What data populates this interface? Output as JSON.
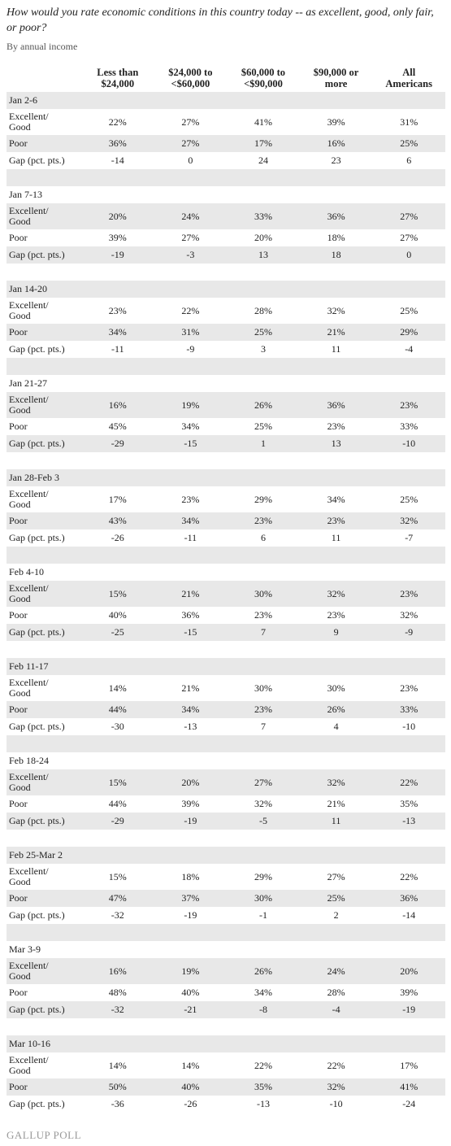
{
  "title": "How would you rate economic conditions in this country today -- as excellent, good, only fair, or poor?",
  "subtitle": "By annual income",
  "header": [
    "Less than\n$24,000",
    "$24,000 to\n<$60,000",
    "$60,000 to\n<$90,000",
    "$90,000 or\nmore",
    "All\nAmericans"
  ],
  "groups": [
    {
      "label": "Jan 2-6",
      "rows": [
        {
          "label": "Excellent/\nGood",
          "values": [
            "22%",
            "27%",
            "41%",
            "39%",
            "31%"
          ]
        },
        {
          "label": "Poor",
          "values": [
            "36%",
            "27%",
            "17%",
            "16%",
            "25%"
          ]
        },
        {
          "label": "Gap (pct. pts.)",
          "values": [
            "-14",
            "0",
            "24",
            "23",
            "6"
          ]
        }
      ]
    },
    {
      "label": "Jan 7-13",
      "rows": [
        {
          "label": "Excellent/\nGood",
          "values": [
            "20%",
            "24%",
            "33%",
            "36%",
            "27%"
          ]
        },
        {
          "label": "Poor",
          "values": [
            "39%",
            "27%",
            "20%",
            "18%",
            "27%"
          ]
        },
        {
          "label": "Gap (pct. pts.)",
          "values": [
            "-19",
            "-3",
            "13",
            "18",
            "0"
          ]
        }
      ]
    },
    {
      "label": "Jan 14-20",
      "rows": [
        {
          "label": "Excellent/\nGood",
          "values": [
            "23%",
            "22%",
            "28%",
            "32%",
            "25%"
          ]
        },
        {
          "label": "Poor",
          "values": [
            "34%",
            "31%",
            "25%",
            "21%",
            "29%"
          ]
        },
        {
          "label": "Gap (pct. pts.)",
          "values": [
            "-11",
            "-9",
            "3",
            "11",
            "-4"
          ]
        }
      ]
    },
    {
      "label": "Jan 21-27",
      "rows": [
        {
          "label": "Excellent/\nGood",
          "values": [
            "16%",
            "19%",
            "26%",
            "36%",
            "23%"
          ]
        },
        {
          "label": "Poor",
          "values": [
            "45%",
            "34%",
            "25%",
            "23%",
            "33%"
          ]
        },
        {
          "label": "Gap (pct. pts.)",
          "values": [
            "-29",
            "-15",
            "1",
            "13",
            "-10"
          ]
        }
      ]
    },
    {
      "label": "Jan 28-Feb 3",
      "rows": [
        {
          "label": "Excellent/\nGood",
          "values": [
            "17%",
            "23%",
            "29%",
            "34%",
            "25%"
          ]
        },
        {
          "label": "Poor",
          "values": [
            "43%",
            "34%",
            "23%",
            "23%",
            "32%"
          ]
        },
        {
          "label": "Gap (pct. pts.)",
          "values": [
            "-26",
            "-11",
            "6",
            "11",
            "-7"
          ]
        }
      ]
    },
    {
      "label": "Feb 4-10",
      "rows": [
        {
          "label": "Excellent/\nGood",
          "values": [
            "15%",
            "21%",
            "30%",
            "32%",
            "23%"
          ]
        },
        {
          "label": "Poor",
          "values": [
            "40%",
            "36%",
            "23%",
            "23%",
            "32%"
          ]
        },
        {
          "label": "Gap (pct. pts.)",
          "values": [
            "-25",
            "-15",
            "7",
            "9",
            "-9"
          ]
        }
      ]
    },
    {
      "label": "Feb 11-17",
      "rows": [
        {
          "label": "Excellent/\nGood",
          "values": [
            "14%",
            "21%",
            "30%",
            "30%",
            "23%"
          ]
        },
        {
          "label": "Poor",
          "values": [
            "44%",
            "34%",
            "23%",
            "26%",
            "33%"
          ]
        },
        {
          "label": "Gap (pct. pts.)",
          "values": [
            "-30",
            "-13",
            "7",
            "4",
            "-10"
          ]
        }
      ]
    },
    {
      "label": "Feb 18-24",
      "rows": [
        {
          "label": "Excellent/\nGood",
          "values": [
            "15%",
            "20%",
            "27%",
            "32%",
            "22%"
          ]
        },
        {
          "label": "Poor",
          "values": [
            "44%",
            "39%",
            "32%",
            "21%",
            "35%"
          ]
        },
        {
          "label": "Gap (pct. pts.)",
          "values": [
            "-29",
            "-19",
            "-5",
            "11",
            "-13"
          ]
        }
      ]
    },
    {
      "label": "Feb 25-Mar 2",
      "rows": [
        {
          "label": "Excellent/\nGood",
          "values": [
            "15%",
            "18%",
            "29%",
            "27%",
            "22%"
          ]
        },
        {
          "label": "Poor",
          "values": [
            "47%",
            "37%",
            "30%",
            "25%",
            "36%"
          ]
        },
        {
          "label": "Gap (pct. pts.)",
          "values": [
            "-32",
            "-19",
            "-1",
            "2",
            "-14"
          ]
        }
      ]
    },
    {
      "label": "Mar 3-9",
      "rows": [
        {
          "label": "Excellent/\nGood",
          "values": [
            "16%",
            "19%",
            "26%",
            "24%",
            "20%"
          ]
        },
        {
          "label": "Poor",
          "values": [
            "48%",
            "40%",
            "34%",
            "28%",
            "39%"
          ]
        },
        {
          "label": "Gap (pct. pts.)",
          "values": [
            "-32",
            "-21",
            "-8",
            "-4",
            "-19"
          ]
        }
      ]
    },
    {
      "label": "Mar 10-16",
      "rows": [
        {
          "label": "Excellent/\nGood",
          "values": [
            "14%",
            "14%",
            "22%",
            "22%",
            "17%"
          ]
        },
        {
          "label": "Poor",
          "values": [
            "50%",
            "40%",
            "35%",
            "32%",
            "41%"
          ]
        },
        {
          "label": "Gap (pct. pts.)",
          "values": [
            "-36",
            "-26",
            "-13",
            "-10",
            "-24"
          ]
        }
      ]
    }
  ],
  "footer": "GALLUP POLL"
}
